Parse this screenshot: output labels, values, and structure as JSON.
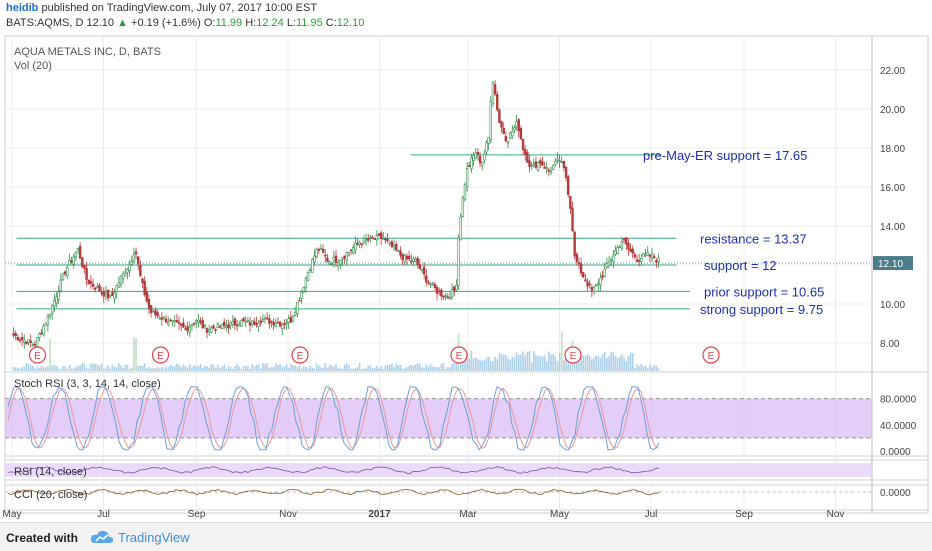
{
  "header": {
    "author": "heidib",
    "published": "published on TradingView.com, July 07, 2017 10:00 EST",
    "symbol": "BATS:AQMS, D",
    "price": "12.10",
    "change_arrow": "▲",
    "change": "+0.19 (+1.6%)",
    "o_label": "O:",
    "o": "11.99",
    "h_label": "H:",
    "h": "12.24",
    "l_label": "L:",
    "l": "11.95",
    "c_label": "C:",
    "c": "12.10"
  },
  "footer": {
    "created_with": "Created with",
    "brand": "TradingView"
  },
  "colors": {
    "up": "#2f8f4a",
    "down": "#b23a3a",
    "hline": "#3aa68e",
    "annotation": "#1f2fb0",
    "stoch_band": "#d9b8f5",
    "rsi_band": "#e6d2f7",
    "earnings": "#e0434d",
    "volume": "#9cc8e6"
  },
  "chart_data": {
    "type": "candlestick",
    "title": "AQUA METALS INC, D, BATS",
    "subtitle": "Vol (20)",
    "x_tick_labels": [
      "May",
      "Jul",
      "Sep",
      "Nov",
      "2017",
      "Mar",
      "May",
      "Jul",
      "Sep",
      "Nov"
    ],
    "y_ticks": [
      "8.00",
      "10.00",
      "12.00",
      "14.00",
      "16.00",
      "18.00",
      "20.00",
      "22.00"
    ],
    "ylim": [
      7,
      23.5
    ],
    "last_price_label": "12.10",
    "close_path": [
      [
        "2016-05-02",
        8.4
      ],
      [
        "2016-05-16",
        7.9
      ],
      [
        "2016-05-26",
        9.5
      ],
      [
        "2016-06-06",
        11.8
      ],
      [
        "2016-06-14",
        12.8
      ],
      [
        "2016-06-20",
        11.2
      ],
      [
        "2016-06-30",
        10.6
      ],
      [
        "2016-07-06",
        10.3
      ],
      [
        "2016-07-13",
        11.4
      ],
      [
        "2016-07-19",
        12.1
      ],
      [
        "2016-07-22",
        12.9
      ],
      [
        "2016-07-26",
        11.2
      ],
      [
        "2016-08-01",
        9.6
      ],
      [
        "2016-08-09",
        9.3
      ],
      [
        "2016-08-17",
        9.0
      ],
      [
        "2016-08-25",
        8.7
      ],
      [
        "2016-09-01",
        9.2
      ],
      [
        "2016-09-07",
        8.7
      ],
      [
        "2016-09-15",
        8.8
      ],
      [
        "2016-09-23",
        8.9
      ],
      [
        "2016-09-30",
        9.1
      ],
      [
        "2016-10-07",
        9.0
      ],
      [
        "2016-10-14",
        9.2
      ],
      [
        "2016-10-21",
        9.1
      ],
      [
        "2016-10-28",
        9.0
      ],
      [
        "2016-11-03",
        9.2
      ],
      [
        "2016-11-09",
        10.4
      ],
      [
        "2016-11-15",
        11.8
      ],
      [
        "2016-11-21",
        12.9
      ],
      [
        "2016-11-28",
        12.2
      ],
      [
        "2016-12-05",
        12.3
      ],
      [
        "2016-12-12",
        12.7
      ],
      [
        "2016-12-19",
        13.2
      ],
      [
        "2016-12-27",
        13.3
      ],
      [
        "2017-01-03",
        13.4
      ],
      [
        "2017-01-11",
        12.8
      ],
      [
        "2017-01-18",
        12.3
      ],
      [
        "2017-01-25",
        12.2
      ],
      [
        "2017-02-01",
        11.3
      ],
      [
        "2017-02-09",
        10.6
      ],
      [
        "2017-02-15",
        10.4
      ],
      [
        "2017-02-21",
        10.7
      ],
      [
        "2017-02-23",
        13.9
      ],
      [
        "2017-02-28",
        16.8
      ],
      [
        "2017-03-06",
        17.8
      ],
      [
        "2017-03-10",
        17.2
      ],
      [
        "2017-03-15",
        18.6
      ],
      [
        "2017-03-17",
        21.8
      ],
      [
        "2017-03-22",
        19.3
      ],
      [
        "2017-03-27",
        18.4
      ],
      [
        "2017-04-03",
        19.3
      ],
      [
        "2017-04-07",
        17.9
      ],
      [
        "2017-04-12",
        17.0
      ],
      [
        "2017-04-18",
        17.3
      ],
      [
        "2017-04-24",
        16.8
      ],
      [
        "2017-05-01",
        17.4
      ],
      [
        "2017-05-05",
        16.7
      ],
      [
        "2017-05-09",
        14.6
      ],
      [
        "2017-05-11",
        12.4
      ],
      [
        "2017-05-17",
        11.4
      ],
      [
        "2017-05-23",
        10.6
      ],
      [
        "2017-05-29",
        11.4
      ],
      [
        "2017-06-05",
        12.4
      ],
      [
        "2017-06-12",
        13.3
      ],
      [
        "2017-06-16",
        12.8
      ],
      [
        "2017-06-22",
        12.3
      ],
      [
        "2017-06-28",
        12.5
      ],
      [
        "2017-07-03",
        12.4
      ],
      [
        "2017-07-07",
        12.1
      ]
    ],
    "horizontal_lines": [
      {
        "label": "pre-May-ER support = 17.65",
        "y": 17.65,
        "from": "2017-01-22",
        "to": "2017-07-08"
      },
      {
        "label": "resistance = 13.37",
        "y": 13.37,
        "from": "2016-05-04",
        "to": "2017-07-18"
      },
      {
        "label": "support = 12",
        "y": 12.0,
        "from": "2016-05-04",
        "to": "2017-07-18"
      },
      {
        "label": "prior support = 10.65",
        "y": 10.65,
        "from": "2016-05-04",
        "to": "2017-07-27"
      },
      {
        "label": "strong support = 9.75",
        "y": 9.75,
        "from": "2016-05-04",
        "to": "2017-07-27"
      }
    ],
    "earnings_markers": [
      "2016-05-18",
      "2016-08-08",
      "2016-11-09",
      "2017-02-23",
      "2017-05-10",
      "2017-08-10"
    ],
    "stoch_rsi": {
      "label": "Stoch RSI (3, 3, 14, 14, close)",
      "y_ticks": [
        "80.0000",
        "40.0000",
        "0.0000"
      ],
      "band": [
        20,
        80
      ]
    },
    "rsi": {
      "label": "RSI (14, close)"
    },
    "cci": {
      "label": "CCI (20, close)",
      "y_ticks": [
        "0.0000"
      ]
    }
  }
}
